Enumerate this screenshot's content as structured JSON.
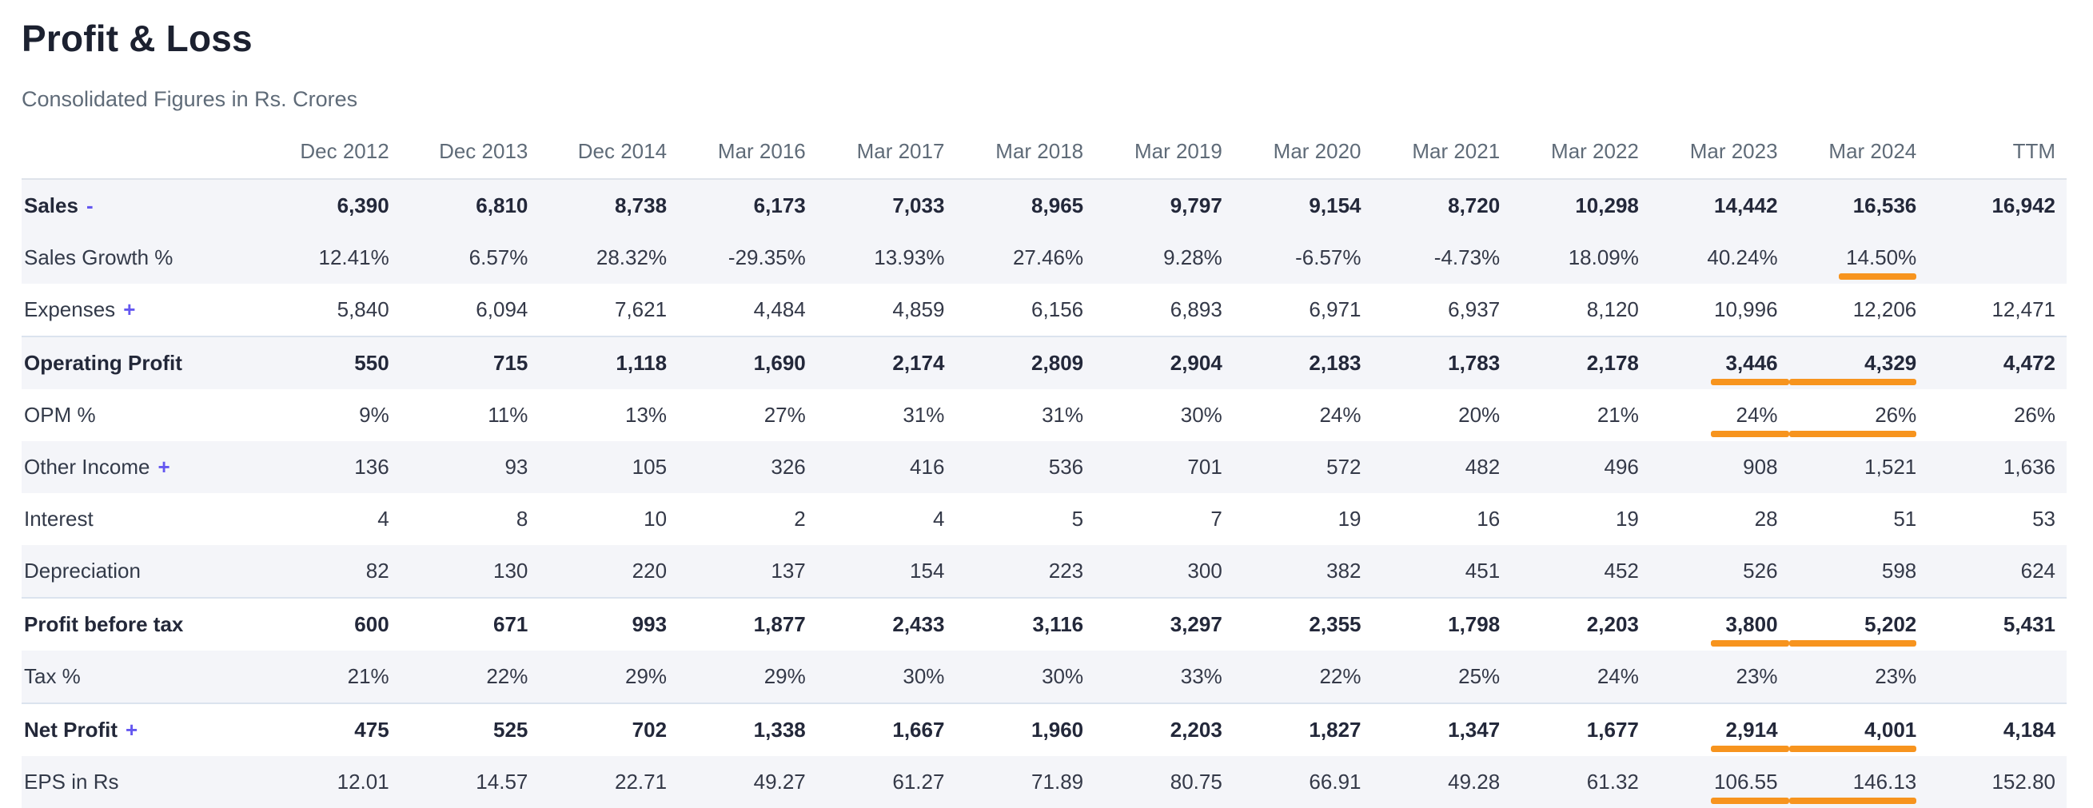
{
  "page": {
    "title": "Profit & Loss",
    "subtitle": "Consolidated Figures in Rs. Crores"
  },
  "colors": {
    "underline_orange": "#f7941e",
    "toggle_purple": "#6457f0",
    "row_stripe": "#f4f5f9",
    "section_border": "#dbe3ee"
  },
  "table": {
    "columns": [
      "Dec 2012",
      "Dec 2013",
      "Dec 2014",
      "Mar 2016",
      "Mar 2017",
      "Mar 2018",
      "Mar 2019",
      "Mar 2020",
      "Mar 2021",
      "Mar 2022",
      "Mar 2023",
      "Mar 2024",
      "TTM"
    ],
    "rows": [
      {
        "label": "Sales",
        "toggle": "-",
        "bold": true,
        "stripe": true,
        "section": false,
        "values": [
          "6,390",
          "6,810",
          "8,738",
          "6,173",
          "7,033",
          "8,965",
          "9,797",
          "9,154",
          "8,720",
          "10,298",
          "14,442",
          "16,536",
          "16,942"
        ],
        "underline": []
      },
      {
        "label": "Sales Growth %",
        "toggle": "",
        "bold": false,
        "stripe": true,
        "section": false,
        "values": [
          "12.41%",
          "6.57%",
          "28.32%",
          "-29.35%",
          "13.93%",
          "27.46%",
          "9.28%",
          "-6.57%",
          "-4.73%",
          "18.09%",
          "40.24%",
          "14.50%",
          ""
        ],
        "underline": [
          11
        ]
      },
      {
        "label": "Expenses",
        "toggle": "+",
        "bold": false,
        "stripe": false,
        "section": false,
        "values": [
          "5,840",
          "6,094",
          "7,621",
          "4,484",
          "4,859",
          "6,156",
          "6,893",
          "6,971",
          "6,937",
          "8,120",
          "10,996",
          "12,206",
          "12,471"
        ],
        "underline": []
      },
      {
        "label": "Operating Profit",
        "toggle": "",
        "bold": true,
        "stripe": true,
        "section": true,
        "values": [
          "550",
          "715",
          "1,118",
          "1,690",
          "2,174",
          "2,809",
          "2,904",
          "2,183",
          "1,783",
          "2,178",
          "3,446",
          "4,329",
          "4,472"
        ],
        "underline": [
          10,
          11
        ]
      },
      {
        "label": "OPM %",
        "toggle": "",
        "bold": false,
        "stripe": false,
        "section": false,
        "values": [
          "9%",
          "11%",
          "13%",
          "27%",
          "31%",
          "31%",
          "30%",
          "24%",
          "20%",
          "21%",
          "24%",
          "26%",
          "26%"
        ],
        "underline": [
          10,
          11
        ]
      },
      {
        "label": "Other Income",
        "toggle": "+",
        "bold": false,
        "stripe": true,
        "section": false,
        "values": [
          "136",
          "93",
          "105",
          "326",
          "416",
          "536",
          "701",
          "572",
          "482",
          "496",
          "908",
          "1,521",
          "1,636"
        ],
        "underline": []
      },
      {
        "label": "Interest",
        "toggle": "",
        "bold": false,
        "stripe": false,
        "section": false,
        "values": [
          "4",
          "8",
          "10",
          "2",
          "4",
          "5",
          "7",
          "19",
          "16",
          "19",
          "28",
          "51",
          "53"
        ],
        "underline": []
      },
      {
        "label": "Depreciation",
        "toggle": "",
        "bold": false,
        "stripe": true,
        "section": false,
        "values": [
          "82",
          "130",
          "220",
          "137",
          "154",
          "223",
          "300",
          "382",
          "451",
          "452",
          "526",
          "598",
          "624"
        ],
        "underline": []
      },
      {
        "label": "Profit before tax",
        "toggle": "",
        "bold": true,
        "stripe": false,
        "section": true,
        "values": [
          "600",
          "671",
          "993",
          "1,877",
          "2,433",
          "3,116",
          "3,297",
          "2,355",
          "1,798",
          "2,203",
          "3,800",
          "5,202",
          "5,431"
        ],
        "underline": [
          10,
          11
        ]
      },
      {
        "label": "Tax %",
        "toggle": "",
        "bold": false,
        "stripe": true,
        "section": false,
        "values": [
          "21%",
          "22%",
          "29%",
          "29%",
          "30%",
          "30%",
          "33%",
          "22%",
          "25%",
          "24%",
          "23%",
          "23%",
          ""
        ],
        "underline": []
      },
      {
        "label": "Net Profit",
        "toggle": "+",
        "bold": true,
        "stripe": false,
        "section": true,
        "values": [
          "475",
          "525",
          "702",
          "1,338",
          "1,667",
          "1,960",
          "2,203",
          "1,827",
          "1,347",
          "1,677",
          "2,914",
          "4,001",
          "4,184"
        ],
        "underline": [
          10,
          11
        ]
      },
      {
        "label": "EPS in Rs",
        "toggle": "",
        "bold": false,
        "stripe": true,
        "section": false,
        "values": [
          "12.01",
          "14.57",
          "22.71",
          "49.27",
          "61.27",
          "71.89",
          "80.75",
          "66.91",
          "49.28",
          "61.32",
          "106.55",
          "146.13",
          "152.80"
        ],
        "underline": [
          10,
          11
        ]
      }
    ]
  }
}
